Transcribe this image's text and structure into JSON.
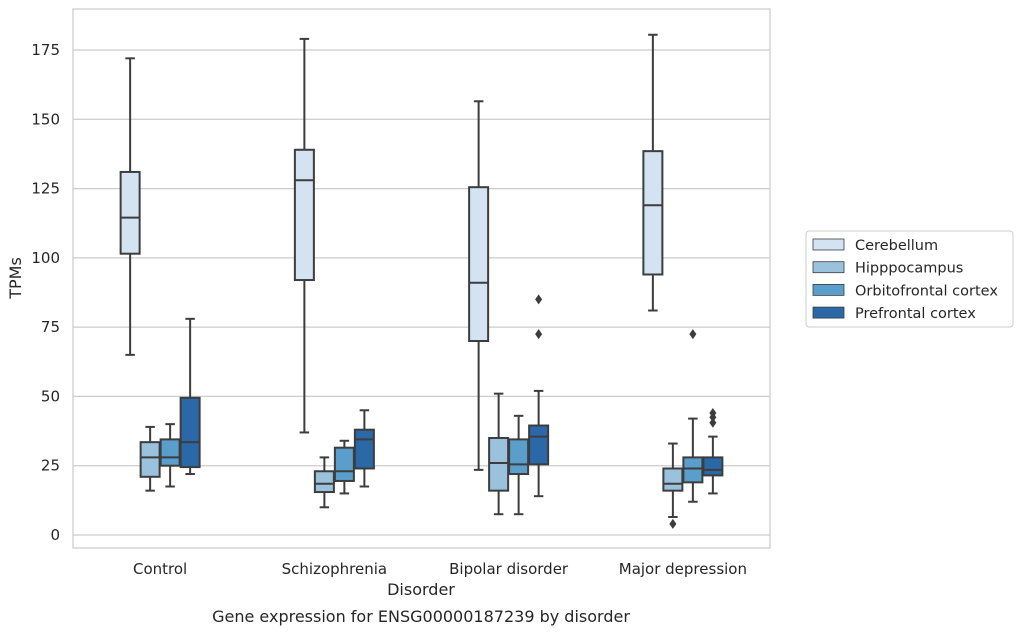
{
  "chart_data": {
    "type": "box",
    "title": "Gene expression for ENSG00000187239 by disorder",
    "xlabel": "Disorder",
    "ylabel": "TPMs",
    "ylim": [
      -4.5,
      190
    ],
    "yticks": [
      0,
      25,
      50,
      75,
      100,
      125,
      150,
      175
    ],
    "grid": true,
    "legend_position": "right",
    "categories": [
      "Control",
      "Schizophrenia",
      "Bipolar disorder",
      "Major depression"
    ],
    "series": [
      {
        "name": "Cerebellum",
        "color": "#d3e3f2",
        "boxes": [
          {
            "min": 65,
            "q1": 101.5,
            "median": 114.5,
            "q3": 131,
            "max": 172,
            "outliers": []
          },
          {
            "min": 37,
            "q1": 92,
            "median": 128,
            "q3": 139,
            "max": 179,
            "outliers": []
          },
          {
            "min": 23.5,
            "q1": 70,
            "median": 91,
            "q3": 125.5,
            "max": 156.5,
            "outliers": []
          },
          {
            "min": 81,
            "q1": 94,
            "median": 119,
            "q3": 138.5,
            "max": 180.5,
            "outliers": []
          }
        ]
      },
      {
        "name": "Hipppocampus",
        "color": "#9ac2dd",
        "boxes": [
          {
            "min": 16,
            "q1": 21,
            "median": 28,
            "q3": 33.5,
            "max": 39,
            "outliers": []
          },
          {
            "min": 10,
            "q1": 15.5,
            "median": 18.5,
            "q3": 23,
            "max": 28,
            "outliers": []
          },
          {
            "min": 7.5,
            "q1": 16,
            "median": 26,
            "q3": 35,
            "max": 51,
            "outliers": []
          },
          {
            "min": 6.5,
            "q1": 16,
            "median": 18.5,
            "q3": 24,
            "max": 33,
            "outliers": [
              4
            ]
          }
        ]
      },
      {
        "name": "Orbitofrontal cortex",
        "color": "#5a9ecc",
        "boxes": [
          {
            "min": 17.5,
            "q1": 25,
            "median": 28,
            "q3": 34.5,
            "max": 40,
            "outliers": []
          },
          {
            "min": 15,
            "q1": 19.5,
            "median": 23,
            "q3": 31.5,
            "max": 34,
            "outliers": []
          },
          {
            "min": 7.5,
            "q1": 22,
            "median": 25.5,
            "q3": 34.5,
            "max": 43,
            "outliers": []
          },
          {
            "min": 12,
            "q1": 19,
            "median": 24,
            "q3": 28,
            "max": 42,
            "outliers": [
              72.5
            ]
          }
        ]
      },
      {
        "name": "Prefrontal cortex",
        "color": "#2a68a8",
        "boxes": [
          {
            "min": 22,
            "q1": 24.5,
            "median": 33.5,
            "q3": 49.5,
            "max": 78,
            "outliers": []
          },
          {
            "min": 17.5,
            "q1": 24,
            "median": 34.5,
            "q3": 38,
            "max": 45,
            "outliers": []
          },
          {
            "min": 14,
            "q1": 25.5,
            "median": 35.5,
            "q3": 39.5,
            "max": 52,
            "outliers": [
              72.5,
              85
            ]
          },
          {
            "min": 15,
            "q1": 21.5,
            "median": 23.5,
            "q3": 28,
            "max": 35.5,
            "outliers": [
              40.5,
              42.5,
              44
            ]
          }
        ]
      }
    ]
  }
}
